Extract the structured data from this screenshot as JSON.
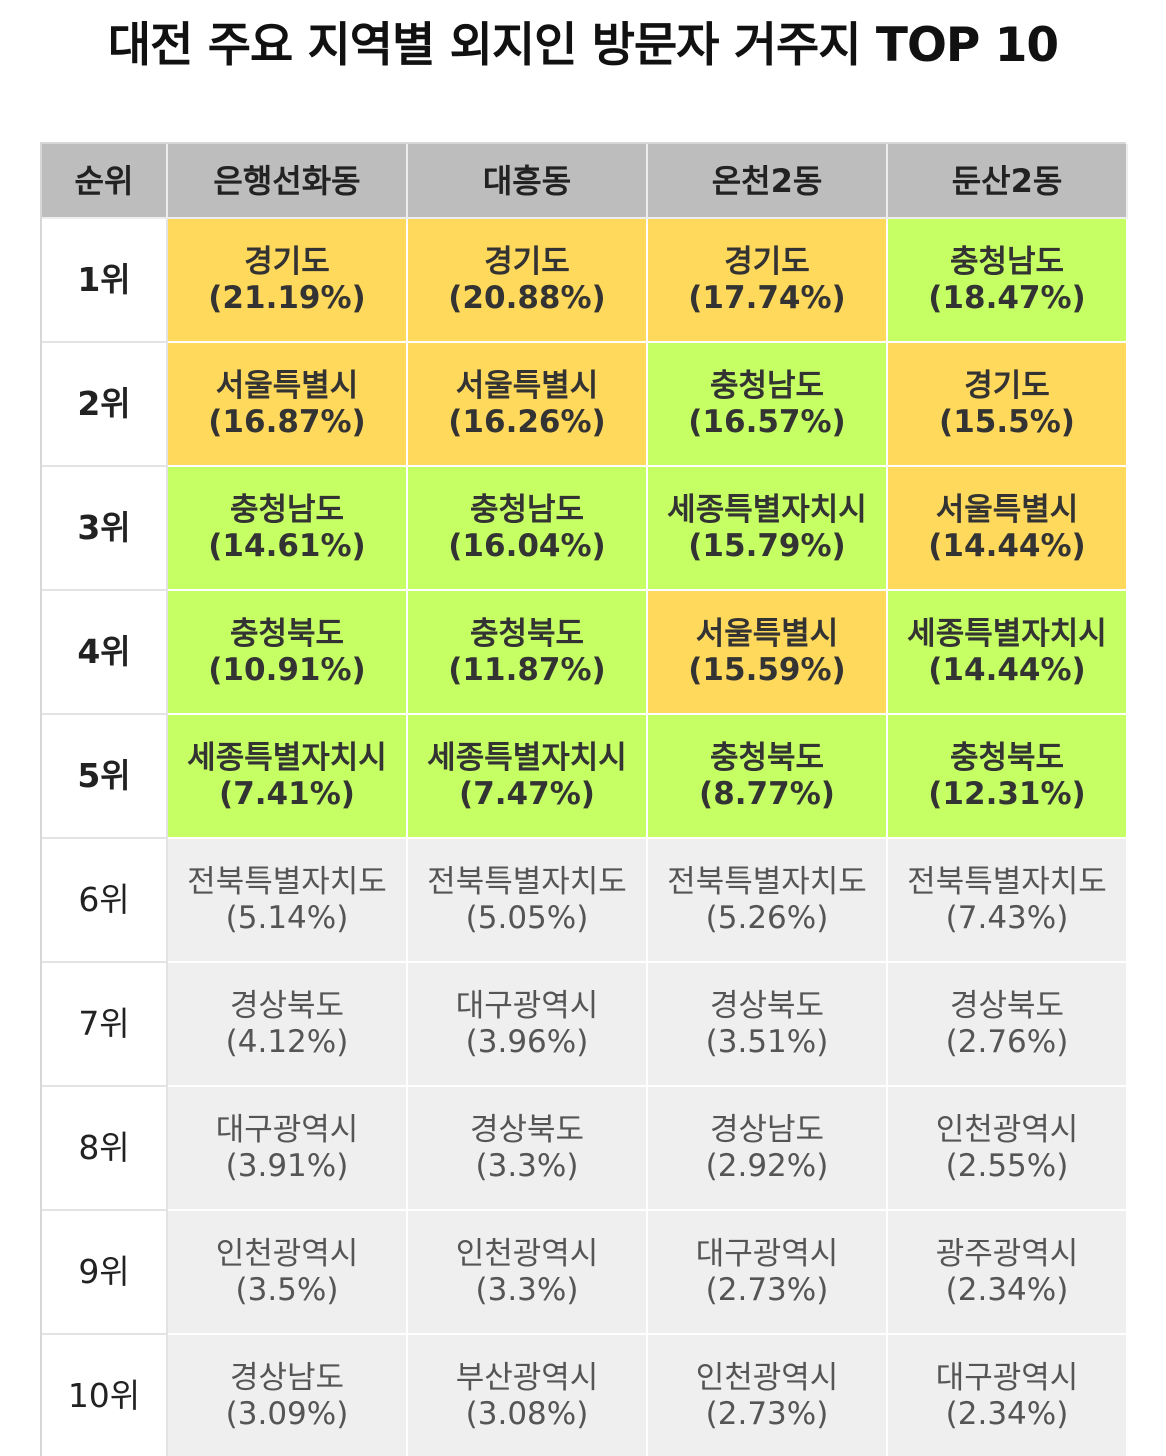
{
  "title": "대전 주요 지역별 외지인 방문자 거주지 TOP 10",
  "colors": {
    "header_bg": "#bdbdbd",
    "orange": "#ffd95c",
    "green": "#c5ff63",
    "rest_bg": "#efefef"
  },
  "table": {
    "headers": [
      "순위",
      "은행선화동",
      "대흥동",
      "온천2동",
      "둔산2동"
    ],
    "rows": [
      {
        "rank": "1위",
        "cells": [
          {
            "region": "경기도",
            "pct": "(21.19%)",
            "color": "orange"
          },
          {
            "region": "경기도",
            "pct": "(20.88%)",
            "color": "orange"
          },
          {
            "region": "경기도",
            "pct": "(17.74%)",
            "color": "orange"
          },
          {
            "region": "충청남도",
            "pct": "(18.47%)",
            "color": "green"
          }
        ]
      },
      {
        "rank": "2위",
        "cells": [
          {
            "region": "서울특별시",
            "pct": "(16.87%)",
            "color": "orange"
          },
          {
            "region": "서울특별시",
            "pct": "(16.26%)",
            "color": "orange"
          },
          {
            "region": "충청남도",
            "pct": "(16.57%)",
            "color": "green"
          },
          {
            "region": "경기도",
            "pct": "(15.5%)",
            "color": "orange"
          }
        ]
      },
      {
        "rank": "3위",
        "cells": [
          {
            "region": "충청남도",
            "pct": "(14.61%)",
            "color": "green"
          },
          {
            "region": "충청남도",
            "pct": "(16.04%)",
            "color": "green"
          },
          {
            "region": "세종특별자치시",
            "pct": "(15.79%)",
            "color": "green"
          },
          {
            "region": "서울특별시",
            "pct": "(14.44%)",
            "color": "orange"
          }
        ]
      },
      {
        "rank": "4위",
        "cells": [
          {
            "region": "충청북도",
            "pct": "(10.91%)",
            "color": "green"
          },
          {
            "region": "충청북도",
            "pct": "(11.87%)",
            "color": "green"
          },
          {
            "region": "서울특별시",
            "pct": "(15.59%)",
            "color": "orange"
          },
          {
            "region": "세종특별자치시",
            "pct": "(14.44%)",
            "color": "green"
          }
        ]
      },
      {
        "rank": "5위",
        "cells": [
          {
            "region": "세종특별자치시",
            "pct": "(7.41%)",
            "color": "green"
          },
          {
            "region": "세종특별자치시",
            "pct": "(7.47%)",
            "color": "green"
          },
          {
            "region": "충청북도",
            "pct": "(8.77%)",
            "color": "green"
          },
          {
            "region": "충청북도",
            "pct": "(12.31%)",
            "color": "green"
          }
        ]
      },
      {
        "rank": "6위",
        "cells": [
          {
            "region": "전북특별자치도",
            "pct": "(5.14%)"
          },
          {
            "region": "전북특별자치도",
            "pct": "(5.05%)"
          },
          {
            "region": "전북특별자치도",
            "pct": "(5.26%)"
          },
          {
            "region": "전북특별자치도",
            "pct": "(7.43%)"
          }
        ]
      },
      {
        "rank": "7위",
        "cells": [
          {
            "region": "경상북도",
            "pct": "(4.12%)"
          },
          {
            "region": "대구광역시",
            "pct": "(3.96%)"
          },
          {
            "region": "경상북도",
            "pct": "(3.51%)"
          },
          {
            "region": "경상북도",
            "pct": "(2.76%)"
          }
        ]
      },
      {
        "rank": "8위",
        "cells": [
          {
            "region": "대구광역시",
            "pct": "(3.91%)"
          },
          {
            "region": "경상북도",
            "pct": "(3.3%)"
          },
          {
            "region": "경상남도",
            "pct": "(2.92%)"
          },
          {
            "region": "인천광역시",
            "pct": "(2.55%)"
          }
        ]
      },
      {
        "rank": "9위",
        "cells": [
          {
            "region": "인천광역시",
            "pct": "(3.5%)"
          },
          {
            "region": "인천광역시",
            "pct": "(3.3%)"
          },
          {
            "region": "대구광역시",
            "pct": "(2.73%)"
          },
          {
            "region": "광주광역시",
            "pct": "(2.34%)"
          }
        ]
      },
      {
        "rank": "10위",
        "cells": [
          {
            "region": "경상남도",
            "pct": "(3.09%)"
          },
          {
            "region": "부산광역시",
            "pct": "(3.08%)"
          },
          {
            "region": "인천광역시",
            "pct": "(2.73%)"
          },
          {
            "region": "대구광역시",
            "pct": "(2.34%)"
          }
        ]
      }
    ]
  }
}
